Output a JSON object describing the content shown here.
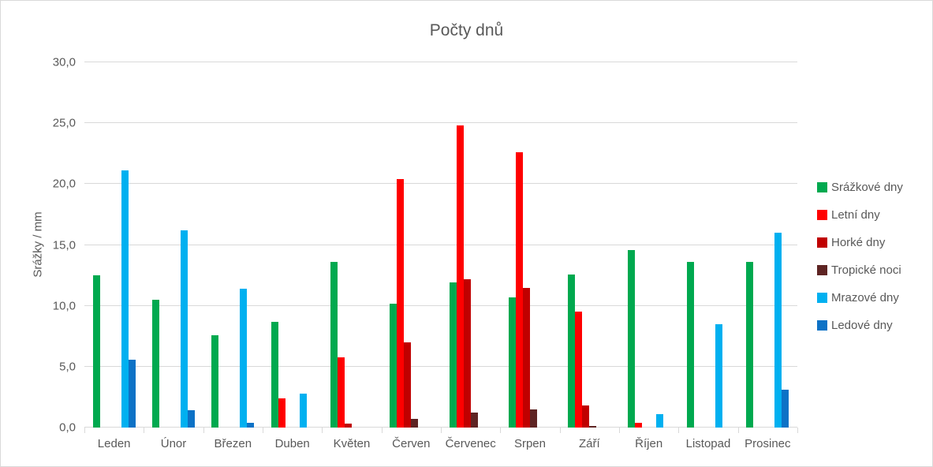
{
  "window": {
    "background": "#ffffff",
    "border_color": "#d9d9d9",
    "text_color": "#595959",
    "gridline_color": "#d9d9d9"
  },
  "chart_data": {
    "type": "bar",
    "title": "Počty dnů",
    "xlabel": "",
    "ylabel": "Srážky / mm",
    "ylim": [
      0,
      30
    ],
    "ytick_step": 5,
    "ytick_labels": [
      "0,0",
      "5,0",
      "10,0",
      "15,0",
      "20,0",
      "25,0",
      "30,0"
    ],
    "grid": true,
    "legend_position": "right",
    "categories": [
      "Leden",
      "Únor",
      "Březen",
      "Duben",
      "Květen",
      "Červen",
      "Červenec",
      "Srpen",
      "Září",
      "Říjen",
      "Listopad",
      "Prosinec"
    ],
    "series": [
      {
        "id": "srazkove-dny",
        "name": "Srážkové dny",
        "color": "#00A94F",
        "values": [
          12.5,
          10.5,
          7.6,
          8.7,
          13.6,
          10.2,
          11.9,
          10.7,
          12.6,
          14.6,
          13.6,
          13.6
        ]
      },
      {
        "id": "letni-dny",
        "name": "Letní dny",
        "color": "#FF0000",
        "values": [
          0,
          0,
          0,
          2.4,
          5.8,
          20.4,
          24.8,
          22.6,
          9.5,
          0.4,
          0,
          0
        ]
      },
      {
        "id": "horke-dny",
        "name": "Horké dny",
        "color": "#C00000",
        "values": [
          0,
          0,
          0,
          0,
          0.3,
          7.0,
          12.2,
          11.5,
          1.8,
          0,
          0,
          0
        ]
      },
      {
        "id": "tropicke-noci",
        "name": "Tropické noci",
        "color": "#5E2423",
        "values": [
          0,
          0,
          0,
          0,
          0,
          0.7,
          1.2,
          1.5,
          0.1,
          0,
          0,
          0
        ]
      },
      {
        "id": "mrazove-dny",
        "name": "Mrazové dny",
        "color": "#00B0F0",
        "values": [
          21.1,
          16.2,
          11.4,
          2.8,
          0,
          0,
          0,
          0,
          0,
          1.1,
          8.5,
          16.0
        ]
      },
      {
        "id": "ledove-dny",
        "name": "Ledové dny",
        "color": "#0D72C6",
        "values": [
          5.6,
          1.4,
          0.4,
          0,
          0,
          0,
          0,
          0,
          0,
          0,
          0,
          3.1
        ]
      }
    ]
  }
}
